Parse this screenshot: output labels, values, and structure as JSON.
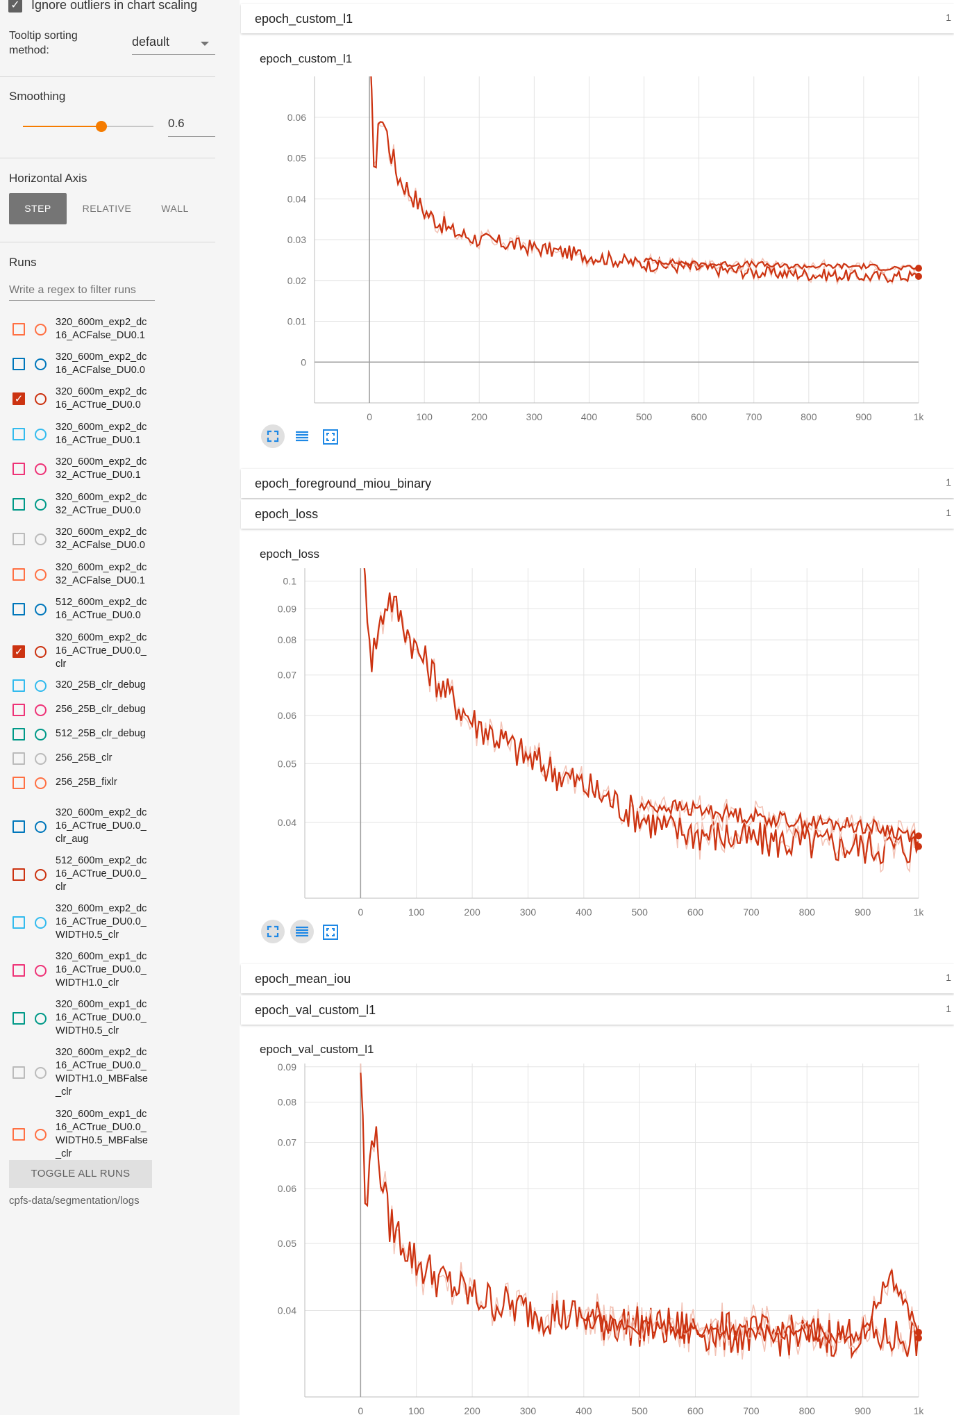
{
  "sidebar": {
    "ignore_outliers_label": "Ignore outliers in chart scaling",
    "tooltip_sorting_label_line1": "Tooltip sorting",
    "tooltip_sorting_label_line2": "method:",
    "tooltip_sorting_value": "default",
    "smoothing_label": "Smoothing",
    "smoothing_value": "0.6",
    "smoothing_fraction": 0.6,
    "horizontal_axis_label": "Horizontal Axis",
    "axis_buttons": [
      "STEP",
      "RELATIVE",
      "WALL"
    ],
    "axis_selected": "STEP",
    "runs_label": "Runs",
    "runs_filter_placeholder": "Write a regex to filter runs",
    "runs": [
      {
        "name": "320_600m_exp2_dc\n16_ACFalse_DU0.1",
        "color": "#ff7043",
        "checked": false
      },
      {
        "name": "320_600m_exp2_dc\n16_ACFalse_DU0.0",
        "color": "#0077bb",
        "checked": false
      },
      {
        "name": "320_600m_exp2_dc\n16_ACTrue_DU0.0",
        "color": "#cc3311",
        "checked": true
      },
      {
        "name": "320_600m_exp2_dc\n16_ACTrue_DU0.1",
        "color": "#33bbee",
        "checked": false
      },
      {
        "name": "320_600m_exp2_dc\n32_ACTrue_DU0.1",
        "color": "#ee3377",
        "checked": false
      },
      {
        "name": "320_600m_exp2_dc\n32_ACTrue_DU0.0",
        "color": "#009988",
        "checked": false
      },
      {
        "name": "320_600m_exp2_dc\n32_ACFalse_DU0.0",
        "color": "#bbbbbb",
        "checked": false
      },
      {
        "name": "320_600m_exp2_dc\n32_ACFalse_DU0.1",
        "color": "#ff7043",
        "checked": false
      },
      {
        "name": "512_600m_exp2_dc\n16_ACTrue_DU0.0",
        "color": "#0077bb",
        "checked": false
      },
      {
        "name": "320_600m_exp2_dc\n16_ACTrue_DU0.0_\nclr",
        "color": "#cc3311",
        "checked": true
      },
      {
        "name": "320_25B_clr_debug",
        "color": "#33bbee",
        "checked": false
      },
      {
        "name": "256_25B_clr_debug",
        "color": "#ee3377",
        "checked": false
      },
      {
        "name": "512_25B_clr_debug",
        "color": "#009988",
        "checked": false
      },
      {
        "name": "256_25B_clr",
        "color": "#bbbbbb",
        "checked": false
      },
      {
        "name": "256_25B_fixlr",
        "color": "#ff7043",
        "checked": false
      },
      {
        "name": "320_600m_exp2_dc\n16_ACTrue_DU0.0_\nclr_aug",
        "color": "#0077bb",
        "checked": false
      },
      {
        "name": "512_600m_exp2_dc\n16_ACTrue_DU0.0_\nclr",
        "color": "#cc3311",
        "checked": false
      },
      {
        "name": "320_600m_exp2_dc\n16_ACTrue_DU0.0_\nWIDTH0.5_clr",
        "color": "#33bbee",
        "checked": false
      },
      {
        "name": "320_600m_exp1_dc\n16_ACTrue_DU0.0_\nWIDTH1.0_clr",
        "color": "#ee3377",
        "checked": false
      },
      {
        "name": "320_600m_exp1_dc\n16_ACTrue_DU0.0_\nWIDTH0.5_clr",
        "color": "#009988",
        "checked": false
      },
      {
        "name": "320_600m_exp2_dc\n16_ACTrue_DU0.0_\nWIDTH1.0_MBFalse\n_clr",
        "color": "#bbbbbb",
        "checked": false
      },
      {
        "name": "320_600m_exp1_dc\n16_ACTrue_DU0.0_\nWIDTH0.5_MBFalse\n_clr",
        "color": "#ff7043",
        "checked": false
      }
    ],
    "toggle_all_label": "TOGGLE ALL RUNS",
    "logdir": "cpfs-data/segmentation/logs"
  },
  "cards": [
    {
      "title": "epoch_custom_l1",
      "count": "1",
      "expanded": true
    },
    {
      "title": "epoch_foreground_miou_binary",
      "count": "1",
      "expanded": false
    },
    {
      "title": "epoch_loss",
      "count": "1",
      "expanded": true
    },
    {
      "title": "epoch_mean_iou",
      "count": "1",
      "expanded": false
    },
    {
      "title": "epoch_val_custom_l1",
      "count": "1",
      "expanded": true
    }
  ],
  "colors": {
    "run_main": "#cc3311",
    "run_faint": "#f3c3b6",
    "accent": "#f57c00"
  },
  "chart_data": [
    {
      "type": "line",
      "title": "epoch_custom_l1",
      "x_ticks": [
        "0",
        "100",
        "200",
        "300",
        "400",
        "500",
        "600",
        "700",
        "800",
        "900",
        "1k"
      ],
      "y_ticks": [
        "0.06",
        "0.05",
        "0.04",
        "0.03",
        "0.02",
        "0.01",
        "0"
      ],
      "x_range": [
        -100,
        1000
      ],
      "y_range": [
        -0.01,
        0.07
      ],
      "series": [
        {
          "color": "#cc3311",
          "x": [
            0,
            10,
            20,
            50,
            100,
            150,
            200,
            300,
            400,
            500,
            600,
            700,
            800,
            900,
            1000
          ],
          "y": [
            0.075,
            0.045,
            0.062,
            0.046,
            0.037,
            0.032,
            0.03,
            0.028,
            0.026,
            0.024,
            0.023,
            0.022,
            0.0215,
            0.021,
            0.021
          ]
        },
        {
          "color": "#cc3311",
          "x": [
            500,
            550,
            600,
            650,
            700,
            750,
            800,
            850,
            900,
            950,
            1000
          ],
          "y": [
            0.025,
            0.0245,
            0.024,
            0.024,
            0.024,
            0.0235,
            0.0235,
            0.0235,
            0.0235,
            0.023,
            0.023
          ]
        }
      ]
    },
    {
      "type": "line",
      "title": "epoch_loss",
      "x_ticks": [
        "0",
        "100",
        "200",
        "300",
        "400",
        "500",
        "600",
        "700",
        "800",
        "900",
        "1k"
      ],
      "y_ticks": [
        "0.1",
        "0.09",
        "0.08",
        "0.07",
        "0.06",
        "0.05",
        "0.04"
      ],
      "x_range": [
        -100,
        1000
      ],
      "y_range": [
        0.03,
        0.105
      ],
      "series": [
        {
          "color": "#cc3311",
          "x": [
            0,
            20,
            50,
            100,
            150,
            200,
            300,
            400,
            500,
            550,
            600,
            700,
            800,
            900,
            1000
          ],
          "y": [
            0.115,
            0.075,
            0.095,
            0.077,
            0.066,
            0.059,
            0.051,
            0.046,
            0.041,
            0.039,
            0.0385,
            0.0375,
            0.037,
            0.0365,
            0.0365
          ]
        },
        {
          "color": "#cc3311",
          "x": [
            500,
            550,
            600,
            700,
            800,
            900,
            1000
          ],
          "y": [
            0.0425,
            0.0425,
            0.042,
            0.041,
            0.04,
            0.0395,
            0.038
          ]
        }
      ]
    },
    {
      "type": "line",
      "title": "epoch_val_custom_l1",
      "x_ticks": [
        "0",
        "100",
        "200",
        "300",
        "400",
        "500",
        "600",
        "700",
        "800",
        "900",
        "1k"
      ],
      "y_ticks": [
        "0.09",
        "0.08",
        "0.07",
        "0.06",
        "0.05",
        "0.04"
      ],
      "x_range": [
        -100,
        1000
      ],
      "y_range": [
        0.03,
        0.091
      ],
      "series": [
        {
          "color": "#cc3311",
          "x": [
            0,
            10,
            20,
            50,
            100,
            150,
            200,
            300,
            400,
            500,
            600,
            700,
            800,
            900,
            1000
          ],
          "y": [
            0.09,
            0.05,
            0.075,
            0.054,
            0.047,
            0.044,
            0.042,
            0.04,
            0.039,
            0.038,
            0.0375,
            0.037,
            0.0368,
            0.0368,
            0.0365
          ]
        },
        {
          "color": "#cc3311",
          "x": [
            400,
            500,
            600,
            700,
            800,
            900,
            950,
            1000
          ],
          "y": [
            0.0385,
            0.0378,
            0.0375,
            0.0372,
            0.037,
            0.037,
            0.045,
            0.0372
          ]
        }
      ]
    }
  ]
}
